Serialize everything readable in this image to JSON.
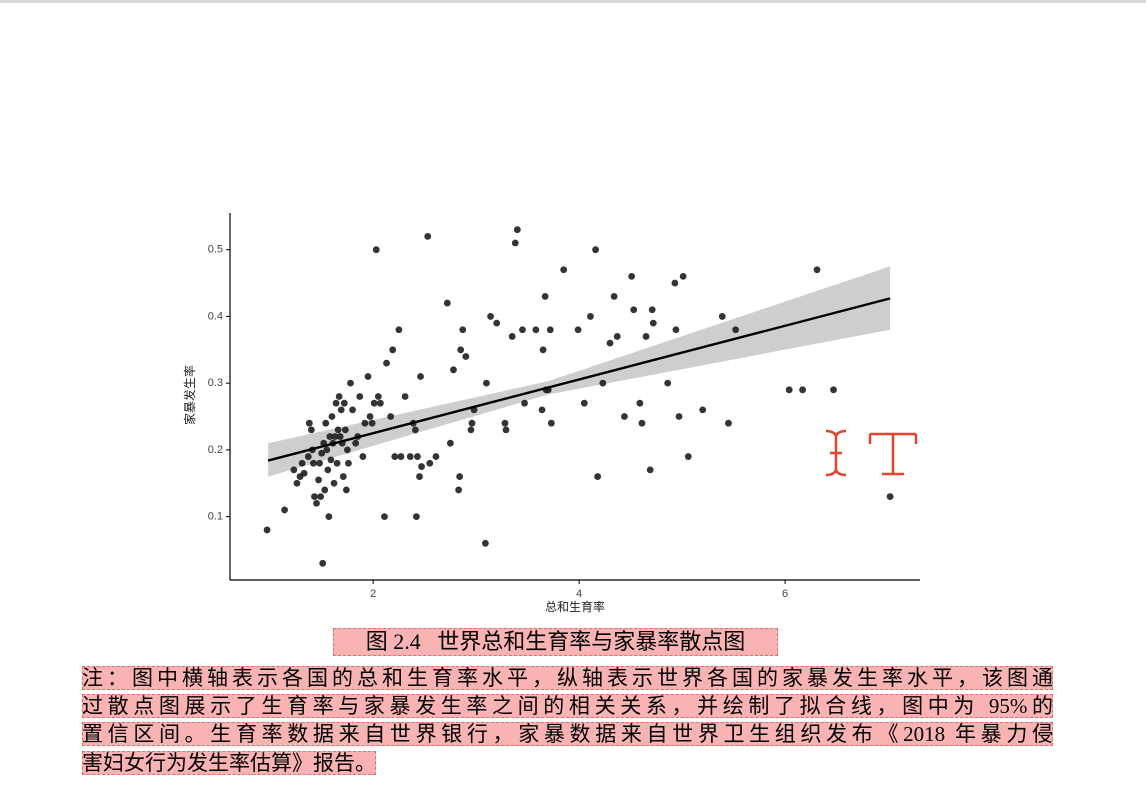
{
  "chart_data": {
    "type": "scatter",
    "x_label": "总和生育率",
    "y_label": "家暴发生率",
    "xlim": [
      0.61,
      7.31
    ],
    "ylim": [
      0.005,
      0.555
    ],
    "xticks": [
      2,
      4,
      6
    ],
    "yticks": [
      0.1,
      0.2,
      0.3,
      0.4,
      0.5
    ],
    "color": "#1e1e1e",
    "x": [
      0.97,
      1.14,
      1.23,
      1.26,
      1.29,
      1.31,
      1.33,
      1.37,
      1.38,
      1.4,
      1.41,
      1.42,
      1.43,
      1.45,
      1.47,
      1.48,
      1.49,
      1.5,
      1.51,
      1.52,
      1.53,
      1.54,
      1.55,
      1.56,
      1.57,
      1.58,
      1.59,
      1.6,
      1.61,
      1.62,
      1.63,
      1.64,
      1.65,
      1.66,
      1.67,
      1.68,
      1.69,
      1.7,
      1.71,
      1.72,
      1.73,
      1.74,
      1.75,
      1.76,
      1.78,
      1.8,
      1.83,
      1.85,
      1.87,
      1.9,
      1.92,
      1.95,
      1.97,
      1.99,
      2.01,
      2.03,
      2.05,
      2.07,
      2.11,
      2.13,
      2.17,
      2.19,
      2.21,
      2.25,
      2.27,
      2.31,
      2.36,
      2.39,
      2.41,
      2.42,
      2.43,
      2.45,
      2.46,
      2.47,
      2.53,
      2.55,
      2.61,
      2.72,
      2.75,
      2.78,
      2.83,
      2.84,
      2.85,
      2.87,
      2.9,
      2.95,
      2.96,
      2.98,
      3.09,
      3.1,
      3.14,
      3.2,
      3.28,
      3.29,
      3.35,
      3.38,
      3.4,
      3.45,
      3.47,
      3.58,
      3.64,
      3.65,
      3.67,
      3.68,
      3.7,
      3.73,
      3.72,
      3.85,
      3.99,
      4.05,
      4.11,
      4.16,
      4.18,
      4.23,
      4.3,
      4.34,
      4.37,
      4.44,
      4.51,
      4.53,
      4.59,
      4.61,
      4.65,
      4.69,
      4.71,
      4.72,
      4.86,
      4.93,
      4.94,
      4.97,
      5.01,
      5.06,
      5.2,
      5.39,
      5.45,
      5.52,
      6.04,
      6.17,
      6.31,
      6.47,
      7.02
    ],
    "y": [
      0.08,
      0.11,
      0.17,
      0.15,
      0.16,
      0.18,
      0.165,
      0.19,
      0.24,
      0.23,
      0.2,
      0.18,
      0.13,
      0.12,
      0.155,
      0.18,
      0.13,
      0.195,
      0.03,
      0.21,
      0.14,
      0.24,
      0.2,
      0.17,
      0.1,
      0.22,
      0.185,
      0.25,
      0.21,
      0.15,
      0.22,
      0.27,
      0.18,
      0.23,
      0.28,
      0.22,
      0.26,
      0.21,
      0.16,
      0.27,
      0.23,
      0.14,
      0.2,
      0.18,
      0.3,
      0.26,
      0.21,
      0.22,
      0.28,
      0.19,
      0.24,
      0.31,
      0.25,
      0.24,
      0.27,
      0.5,
      0.28,
      0.27,
      0.1,
      0.33,
      0.25,
      0.35,
      0.19,
      0.38,
      0.19,
      0.28,
      0.19,
      0.24,
      0.23,
      0.1,
      0.19,
      0.16,
      0.31,
      0.175,
      0.52,
      0.18,
      0.19,
      0.42,
      0.21,
      0.32,
      0.14,
      0.16,
      0.35,
      0.38,
      0.34,
      0.23,
      0.24,
      0.26,
      0.06,
      0.3,
      0.4,
      0.39,
      0.24,
      0.23,
      0.37,
      0.51,
      0.53,
      0.38,
      0.27,
      0.38,
      0.26,
      0.35,
      0.43,
      0.29,
      0.29,
      0.24,
      0.38,
      0.47,
      0.38,
      0.27,
      0.4,
      0.5,
      0.16,
      0.3,
      0.36,
      0.43,
      0.37,
      0.25,
      0.46,
      0.41,
      0.27,
      0.24,
      0.37,
      0.17,
      0.41,
      0.39,
      0.3,
      0.45,
      0.38,
      0.25,
      0.46,
      0.19,
      0.26,
      0.4,
      0.24,
      0.38,
      0.29,
      0.29,
      0.47,
      0.29,
      0.13
    ],
    "fit": {
      "x": [
        0.98,
        7.02
      ],
      "y": [
        0.184,
        0.427
      ]
    },
    "ci": {
      "x": [
        0.98,
        3.7,
        7.02
      ],
      "lower": [
        0.16,
        0.283,
        0.38
      ],
      "upper": [
        0.21,
        0.303,
        0.475
      ]
    }
  },
  "caption": "图 2.4   世界总和生育率与家暴率散点图",
  "note": [
    "注：图中横轴表示各国的总和生育率水平，纵轴表示世界各国的家暴发生率水平，该图通",
    "过散点图展示了生育率与家暴发生率之间的相关关系，并绘制了拟合线，图中为 95%的",
    "置信区间。生育率数据来自世界银行，家暴数据来自世界卫生组织发布《2018 年暴力侵",
    "害妇女行为发生率估算》报告。"
  ]
}
